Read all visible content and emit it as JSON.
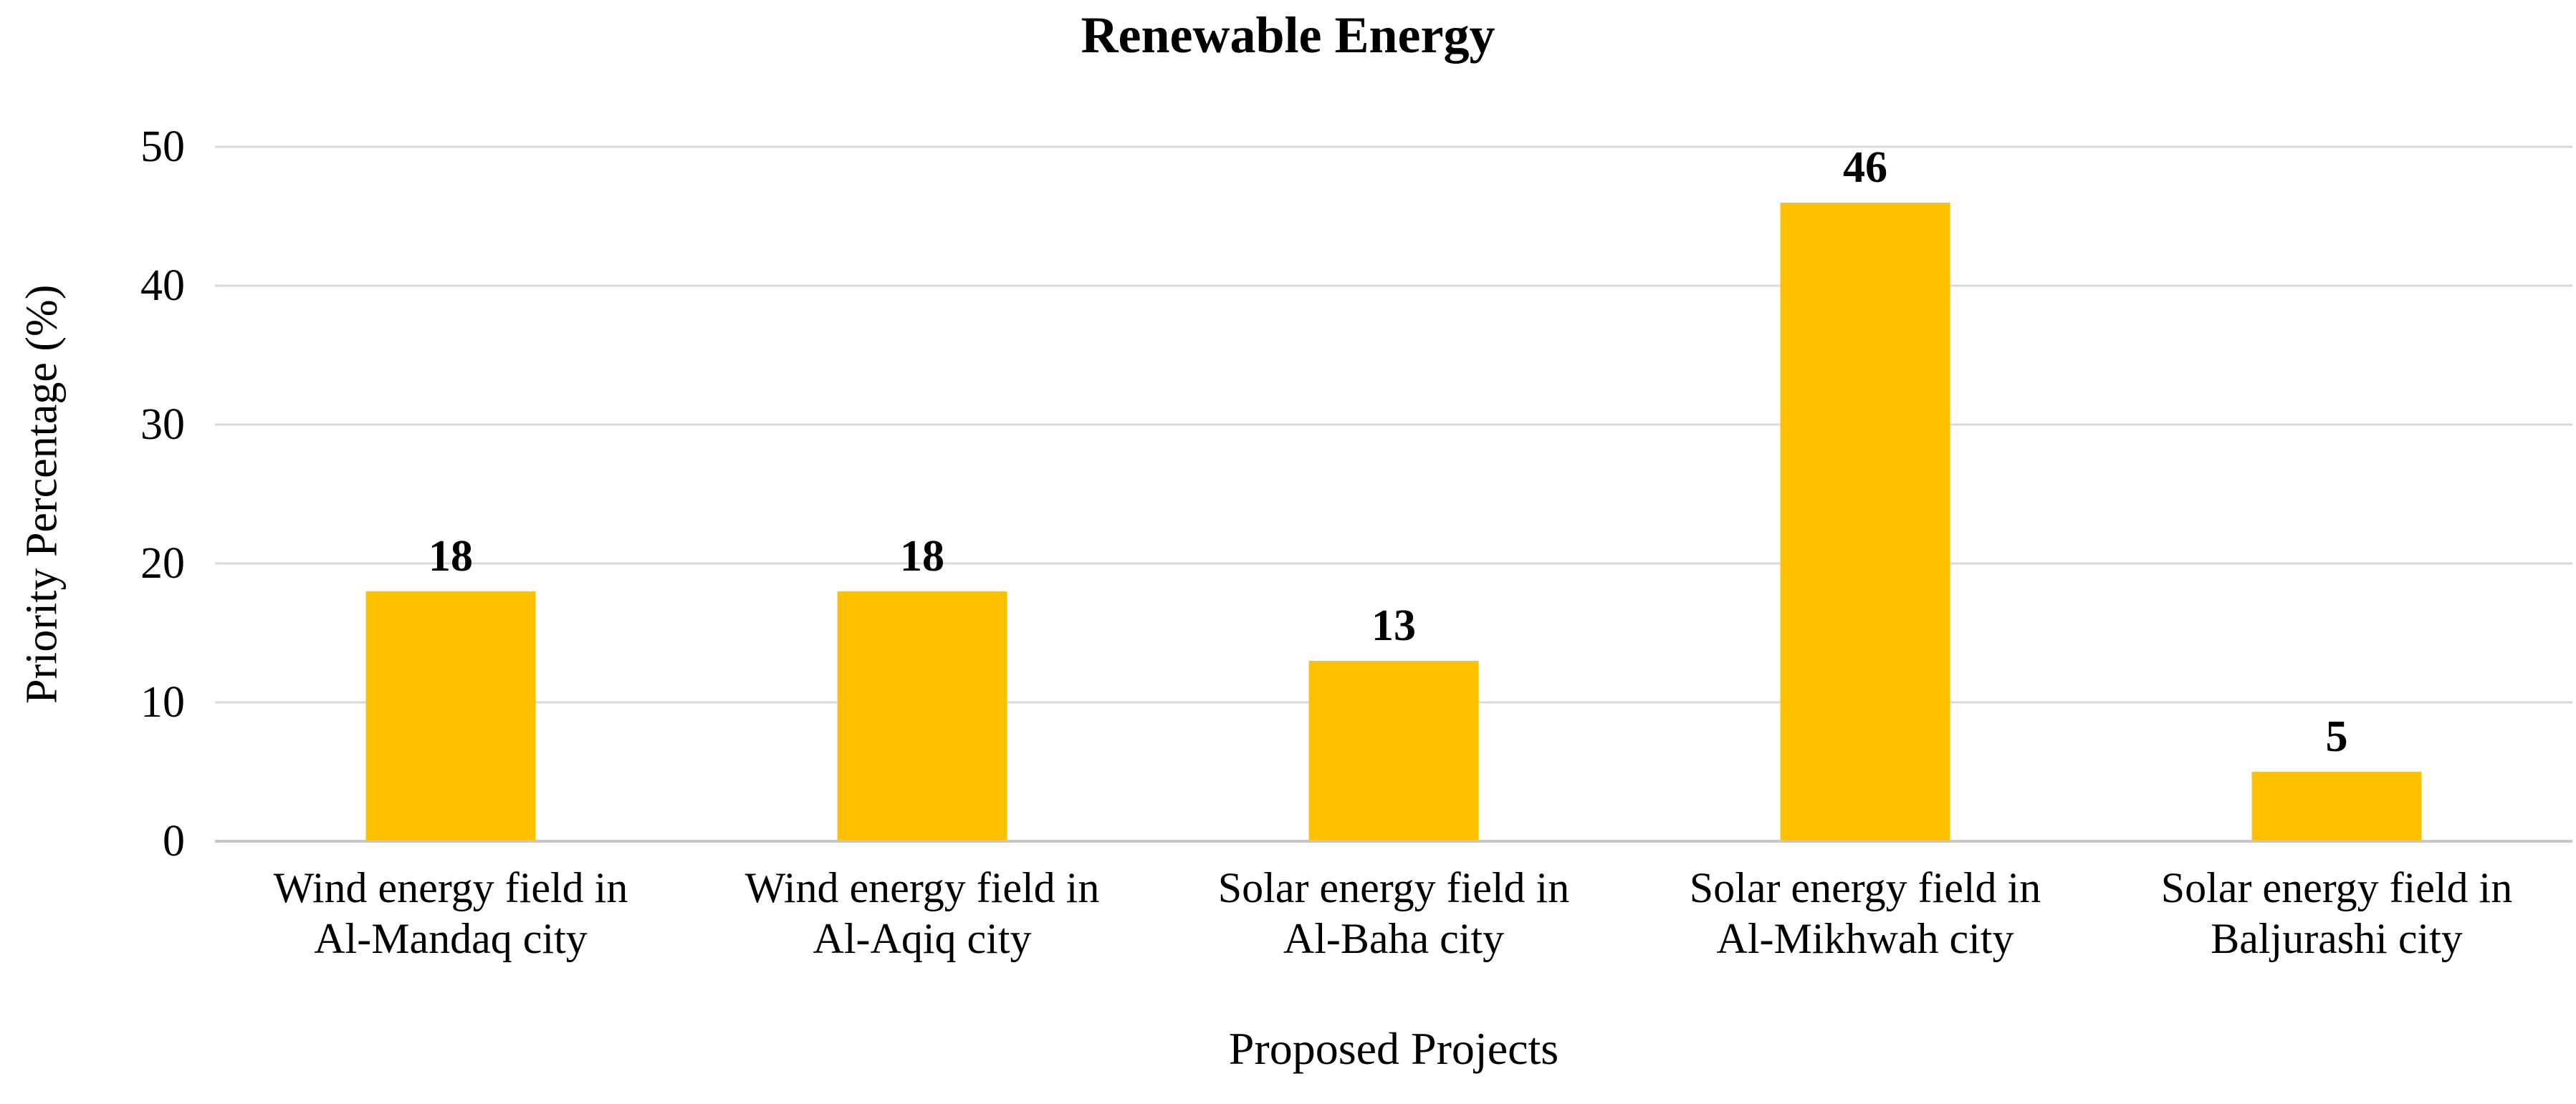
{
  "chart_data": {
    "type": "bar",
    "title": "Renewable Energy",
    "xlabel": "Proposed Projects",
    "ylabel": "Priority Percentage (%)",
    "categories": [
      "Wind energy field in Al-Mandaq city",
      "Wind energy field in Al-Aqiq city",
      "Solar energy field in Al-Baha city",
      "Solar energy field in Al-Mikhwah city",
      "Solar energy field in Baljurashi city"
    ],
    "categories_lines": [
      [
        "Wind energy field in",
        "Al-Mandaq city"
      ],
      [
        "Wind energy field in",
        "Al-Aqiq city"
      ],
      [
        "Solar energy field in",
        "Al-Baha city"
      ],
      [
        "Solar energy field in",
        "Al-Mikhwah city"
      ],
      [
        "Solar energy field in",
        "Baljurashi city"
      ]
    ],
    "values": [
      18,
      18,
      13,
      46,
      5
    ],
    "data_labels": [
      "18",
      "18",
      "13",
      "46",
      "5"
    ],
    "ylim": [
      0,
      50
    ],
    "yticks": [
      0,
      10,
      20,
      30,
      40,
      50
    ],
    "grid": true,
    "legend": false,
    "legend_position": "none",
    "bar_color": "#FFC000",
    "gridline_color": "#D9D9D9",
    "axis_line_color": "#C6C6C8",
    "text_color": "#000000",
    "background_color": "#FFFFFF"
  }
}
